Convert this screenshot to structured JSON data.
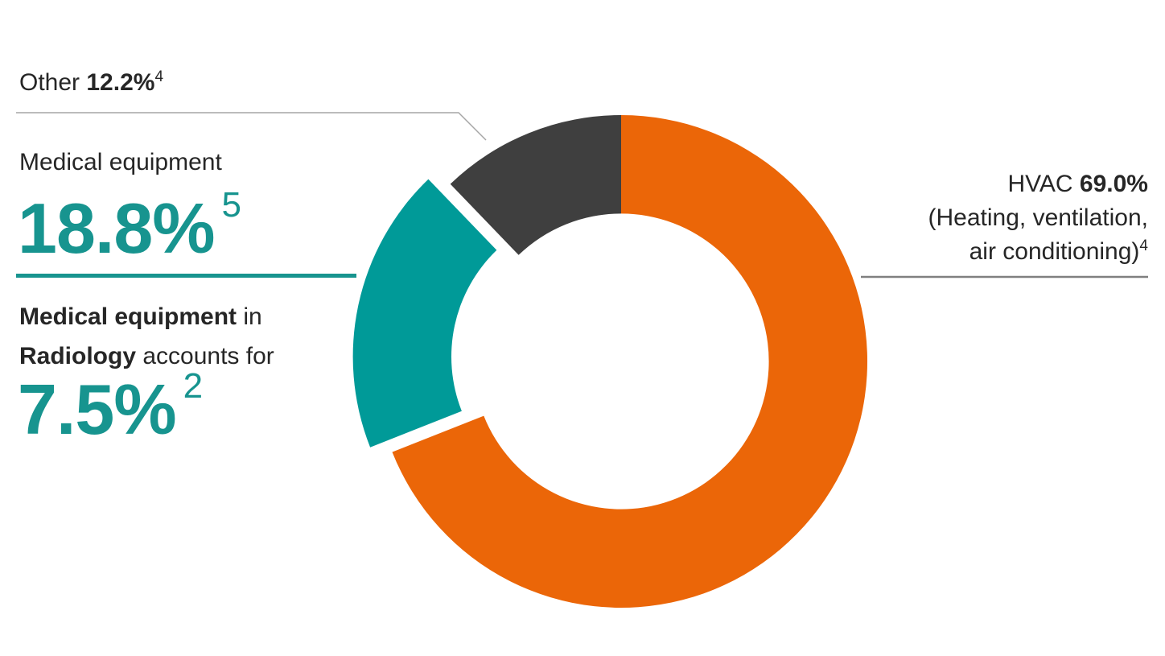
{
  "chart_data": {
    "type": "pie",
    "subtype": "donut",
    "title": "",
    "units": "%",
    "direction": "clockwise",
    "start_angle_deg": 0,
    "donut_hole_ratio": 0.6,
    "legend": "none",
    "segments": [
      {
        "id": "hvac",
        "label": "HVAC (Heating, ventilation, air conditioning)",
        "value": 69.0,
        "color": "#EB6608",
        "exploded": false,
        "footnote": "4"
      },
      {
        "id": "medical-equipment",
        "label": "Medical equipment",
        "value": 18.8,
        "color": "#009A98",
        "exploded": true,
        "footnote": "5"
      },
      {
        "id": "other",
        "label": "Other",
        "value": 12.2,
        "color": "#3F3F3F",
        "exploded": false,
        "footnote": "4"
      }
    ],
    "annotation": {
      "text": "Medical equipment in Radiology accounts for 7.5%",
      "value": 7.5,
      "footnote": "2"
    }
  },
  "labels": {
    "other": {
      "prefix": "Other ",
      "value": "12.2%",
      "footnote": "4"
    },
    "medical": {
      "title": "Medical equipment",
      "value": "18.8%",
      "footnote": "5"
    },
    "radiology": {
      "bold1": "Medical equipment",
      "rest1": " in",
      "bold2": "Radiology",
      "rest2": " accounts for",
      "value": "7.5%",
      "footnote": "2"
    },
    "hvac": {
      "prefix": "HVAC ",
      "value": "69.0%",
      "line2": "(Heating, ventilation,",
      "line3": "air conditioning)",
      "footnote": "4"
    }
  },
  "colors": {
    "accent_teal": "#17948F",
    "segment_orange": "#EB6608",
    "segment_teal": "#009A98",
    "segment_gray": "#3F3F3F",
    "text_dark": "#262626",
    "leader_light": "#A6A6A6",
    "leader_dark": "#808080"
  }
}
